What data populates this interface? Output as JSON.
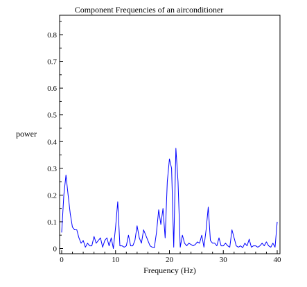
{
  "chart_data": {
    "type": "line",
    "title": "Component Frequencies of an airconditioner",
    "xlabel": "Frequency (Hz)",
    "ylabel": "power",
    "xlim": [
      0,
      40
    ],
    "ylim": [
      0,
      0.87
    ],
    "xticks": [
      0,
      10,
      20,
      30,
      40
    ],
    "yticks": [
      0,
      0.1,
      0.2,
      0.3,
      0.4,
      0.5,
      0.6,
      0.7,
      0.8
    ],
    "xtick_labels": [
      "0",
      "10",
      "20",
      "30",
      "40"
    ],
    "ytick_labels": [
      "0",
      "0.1",
      "0.2",
      "0.3",
      "0.4",
      "0.5",
      "0.6",
      "0.7",
      "0.8"
    ],
    "grid": false,
    "series": [
      {
        "color": "#0000ff",
        "x": [
          0.0,
          0.4,
          0.8,
          1.2,
          1.6,
          2.0,
          2.4,
          2.8,
          3.2,
          3.6,
          4.0,
          4.4,
          4.8,
          5.2,
          5.6,
          6.0,
          6.4,
          6.8,
          7.2,
          7.6,
          8.0,
          8.4,
          8.8,
          9.2,
          9.6,
          10.0,
          10.4,
          10.8,
          11.2,
          11.6,
          12.0,
          12.4,
          12.8,
          13.2,
          13.6,
          14.0,
          14.4,
          14.8,
          15.2,
          15.6,
          16.0,
          16.4,
          16.8,
          17.2,
          17.6,
          18.0,
          18.4,
          18.8,
          19.2,
          19.6,
          20.0,
          20.4,
          20.8,
          21.2,
          21.6,
          22.0,
          22.4,
          22.8,
          23.2,
          23.6,
          24.0,
          24.4,
          24.8,
          25.2,
          25.6,
          26.0,
          26.4,
          26.8,
          27.2,
          27.6,
          28.0,
          28.4,
          28.8,
          29.2,
          29.6,
          30.0,
          30.4,
          30.8,
          31.2,
          31.6,
          32.0,
          32.4,
          32.8,
          33.2,
          33.6,
          34.0,
          34.4,
          34.8,
          35.2,
          35.6,
          36.0,
          36.4,
          36.8,
          37.2,
          37.6,
          38.0,
          38.4,
          38.8,
          39.2,
          39.6,
          40.0
        ],
        "y": [
          0.06,
          0.2,
          0.275,
          0.2,
          0.13,
          0.08,
          0.07,
          0.07,
          0.04,
          0.02,
          0.03,
          0.005,
          0.02,
          0.01,
          0.01,
          0.045,
          0.02,
          0.03,
          0.04,
          0.005,
          0.03,
          0.04,
          0.01,
          0.04,
          0.0,
          0.08,
          0.175,
          0.01,
          0.01,
          0.005,
          0.01,
          0.05,
          0.01,
          0.01,
          0.03,
          0.085,
          0.04,
          0.02,
          0.07,
          0.05,
          0.03,
          0.01,
          0.005,
          0.003,
          0.06,
          0.145,
          0.09,
          0.15,
          0.04,
          0.25,
          0.335,
          0.3,
          0.005,
          0.375,
          0.25,
          0.005,
          0.05,
          0.02,
          0.01,
          0.02,
          0.015,
          0.01,
          0.015,
          0.025,
          0.02,
          0.05,
          0.005,
          0.07,
          0.155,
          0.03,
          0.02,
          0.02,
          0.01,
          0.04,
          0.01,
          0.01,
          0.02,
          0.01,
          0.005,
          0.07,
          0.04,
          0.01,
          0.005,
          0.01,
          0.003,
          0.02,
          0.01,
          0.035,
          0.005,
          0.01,
          0.01,
          0.005,
          0.01,
          0.02,
          0.01,
          0.025,
          0.01,
          0.005,
          0.02,
          0.005,
          0.1
        ]
      }
    ]
  }
}
